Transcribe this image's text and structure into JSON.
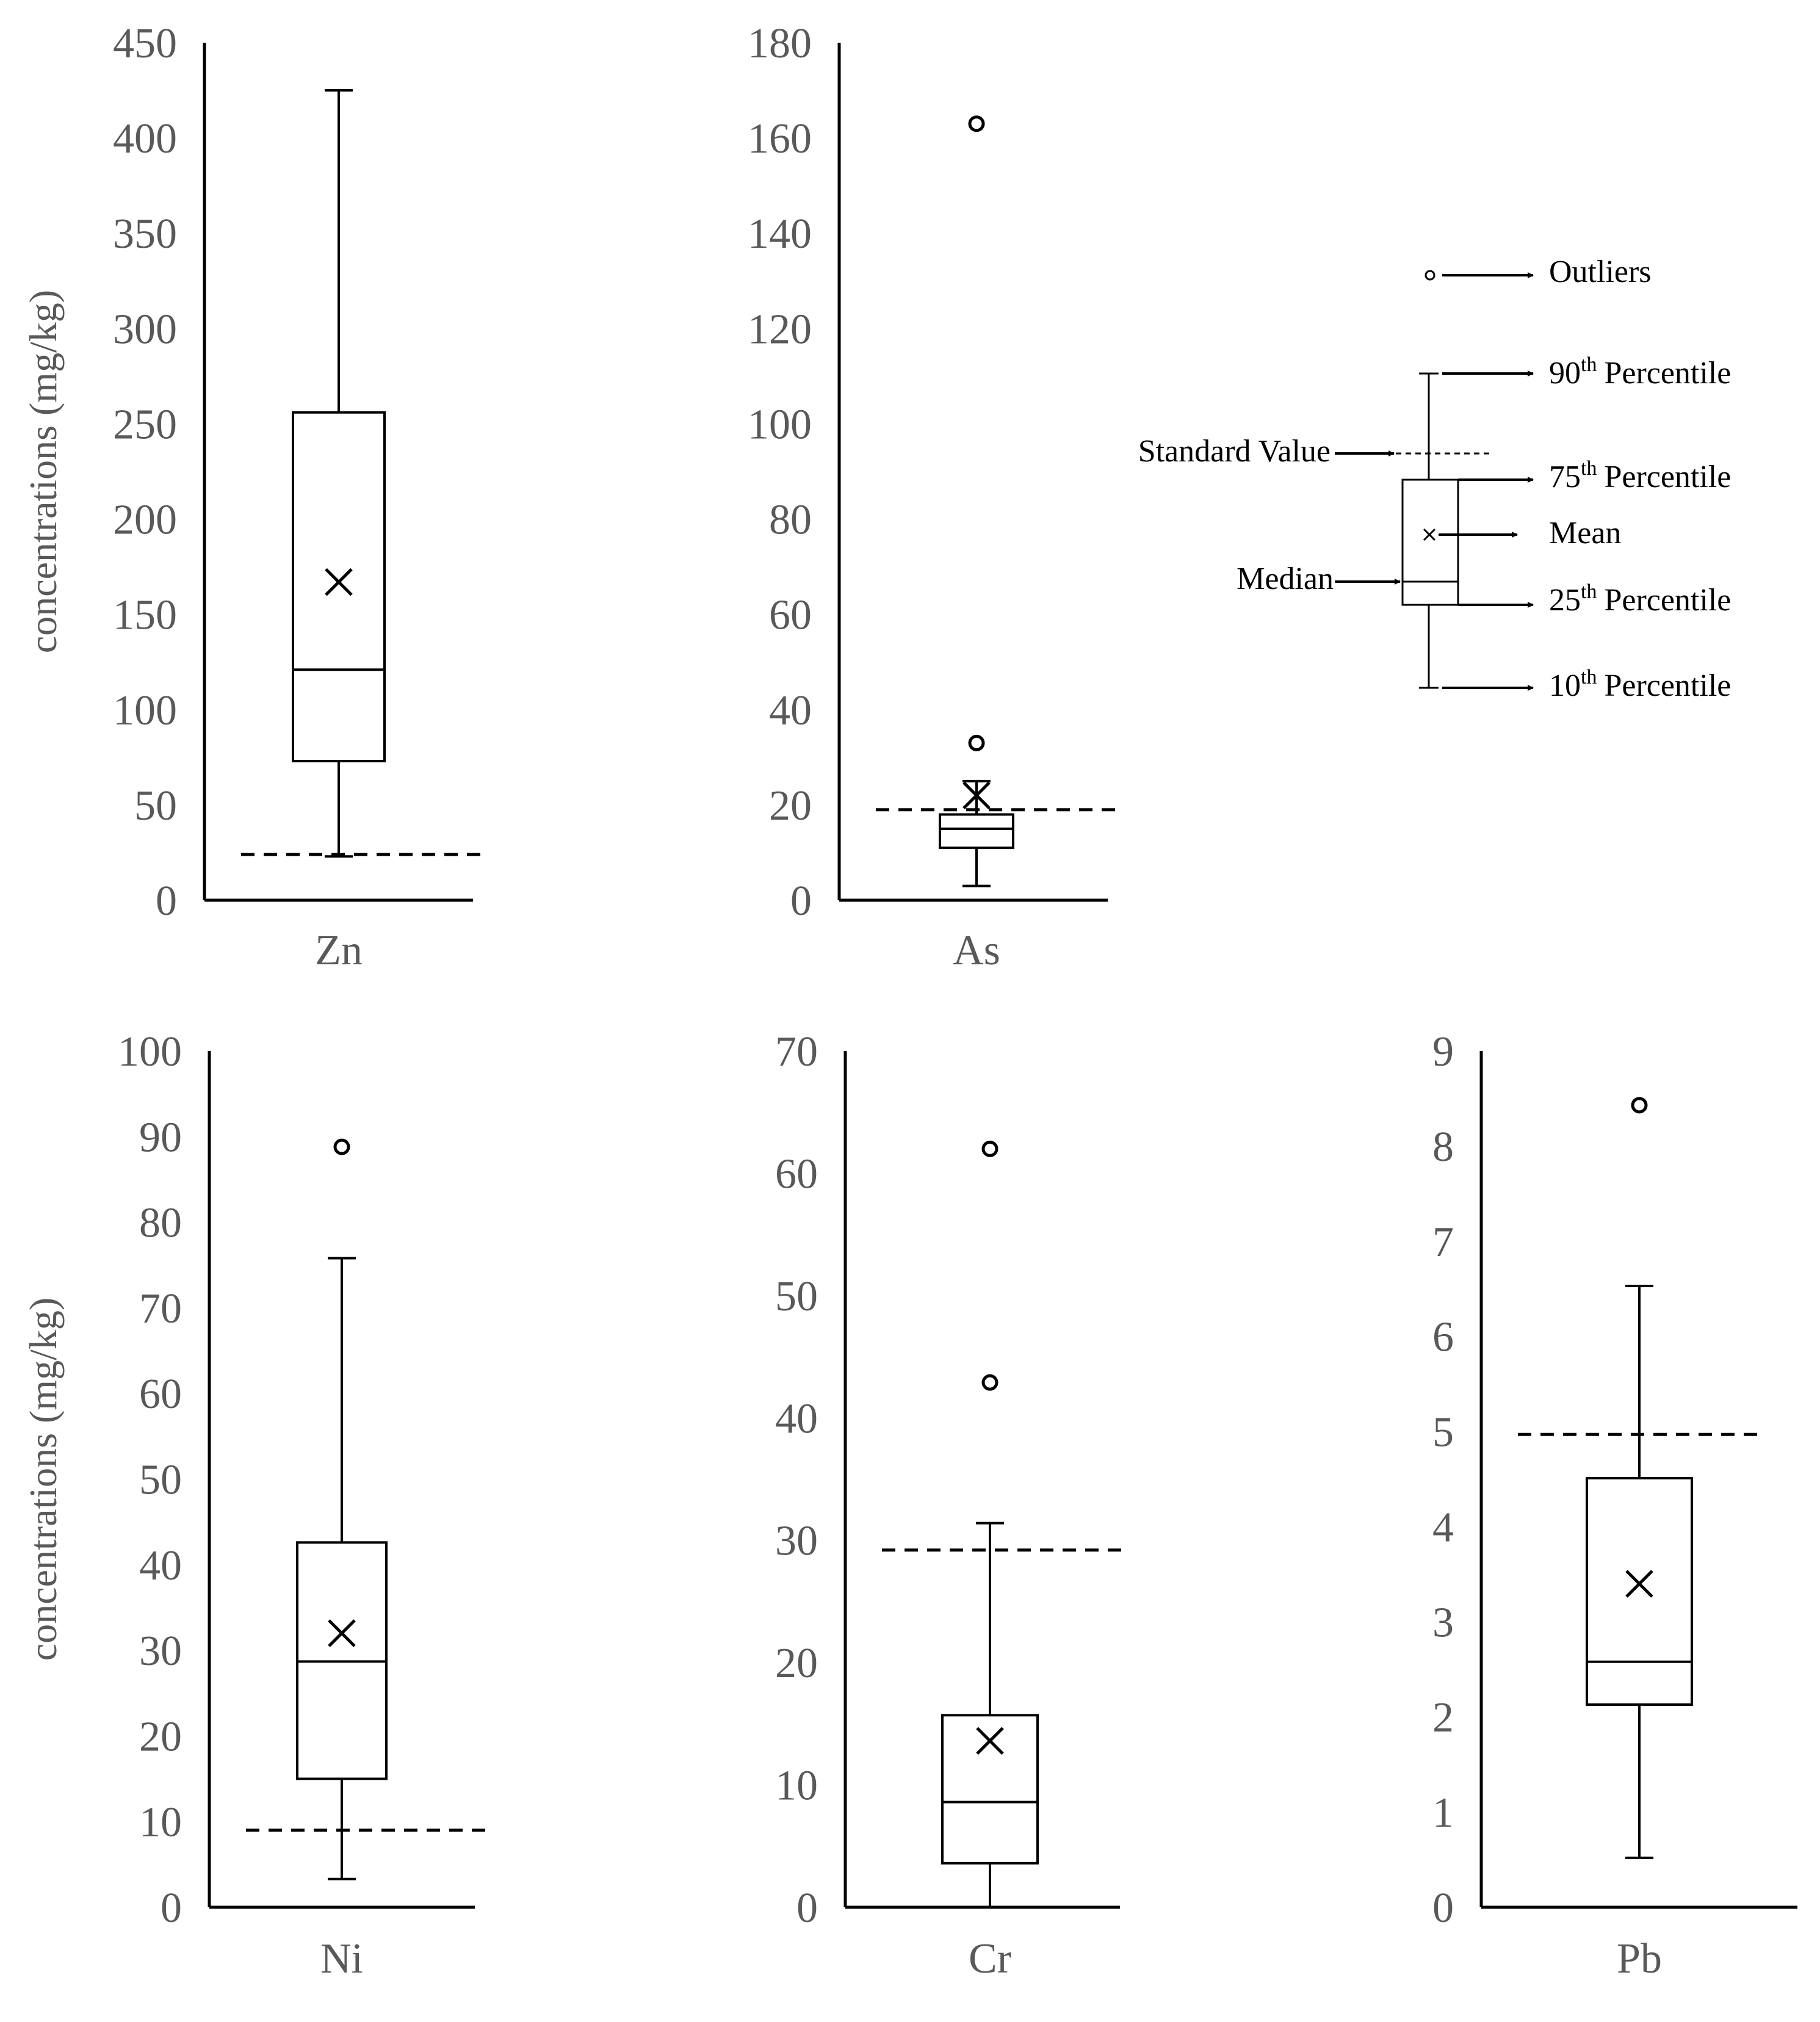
{
  "chart_data": [
    {
      "type": "box",
      "category": "Zn",
      "ylabel": "concentrations (mg/kg)",
      "ylim": [
        0,
        450
      ],
      "ticks": [
        0,
        50,
        100,
        150,
        200,
        250,
        300,
        350,
        400,
        450
      ],
      "tick_labels": [
        "0",
        "50",
        "100",
        "150",
        "200",
        "250",
        "300",
        "350",
        "400",
        "450"
      ],
      "p10": 23,
      "q1": 73,
      "median": 121,
      "q3": 256,
      "p90": 425,
      "mean": 167,
      "outliers": [],
      "standard_value": 24
    },
    {
      "type": "box",
      "category": "As",
      "ylabel": "",
      "ylim": [
        0,
        180
      ],
      "ticks": [
        0,
        20,
        40,
        60,
        80,
        100,
        120,
        140,
        160,
        180
      ],
      "tick_labels": [
        "0",
        "20",
        "40",
        "60",
        "80",
        "100",
        "120",
        "140",
        "160",
        "180"
      ],
      "p10": 3,
      "q1": 11,
      "median": 15,
      "q3": 18,
      "p90": 25,
      "mean": 22,
      "outliers": [
        33,
        163
      ],
      "standard_value": 19
    },
    {
      "type": "box",
      "category": "Ni",
      "ylabel": "concentrations (mg/kg)",
      "ylim": [
        0,
        100
      ],
      "ticks": [
        0,
        10,
        20,
        30,
        40,
        50,
        60,
        70,
        80,
        90,
        100
      ],
      "tick_labels": [
        "0",
        "10",
        "20",
        "30",
        "40",
        "50",
        "60",
        "70",
        "80",
        "90",
        "100"
      ],
      "p10": 3.3,
      "q1": 15,
      "median": 28.7,
      "q3": 42.6,
      "p90": 75.8,
      "mean": 32,
      "outliers": [
        88.8
      ],
      "standard_value": 9
    },
    {
      "type": "box",
      "category": "Cr",
      "ylabel": "",
      "ylim": [
        0,
        70
      ],
      "ticks": [
        0,
        10,
        20,
        30,
        40,
        50,
        60,
        70
      ],
      "tick_labels": [
        "0",
        "10",
        "20",
        "30",
        "40",
        "50",
        "60",
        "70"
      ],
      "p10": 0,
      "q1": 3.6,
      "median": 8.6,
      "q3": 15.7,
      "p90": 31.4,
      "mean": 13.6,
      "outliers": [
        42.9,
        62
      ],
      "standard_value": 29.2
    },
    {
      "type": "box",
      "category": "Pb",
      "ylabel": "",
      "ylim": [
        0,
        9
      ],
      "ticks": [
        0,
        1,
        2,
        3,
        4,
        5,
        6,
        7,
        8,
        9
      ],
      "tick_labels": [
        "0",
        "1",
        "2",
        "3",
        "4",
        "5",
        "6",
        "7",
        "8",
        "9"
      ],
      "p10": 0.52,
      "q1": 2.13,
      "median": 2.58,
      "q3": 4.51,
      "p90": 6.53,
      "mean": 3.4,
      "outliers": [
        8.43
      ],
      "standard_value": 4.97
    }
  ],
  "legend": {
    "outliers": "Outliers",
    "standard_value": "Standard Value",
    "median": "Median",
    "mean": "Mean",
    "p90": {
      "num": "90",
      "sup": "th",
      "text": "Percentile"
    },
    "p75": {
      "num": "75",
      "sup": "th",
      "text": "Percentile"
    },
    "p25": {
      "num": "25",
      "sup": "th",
      "text": "Percentile"
    },
    "p10": {
      "num": "10",
      "sup": "th",
      "text": "Percentile"
    }
  }
}
